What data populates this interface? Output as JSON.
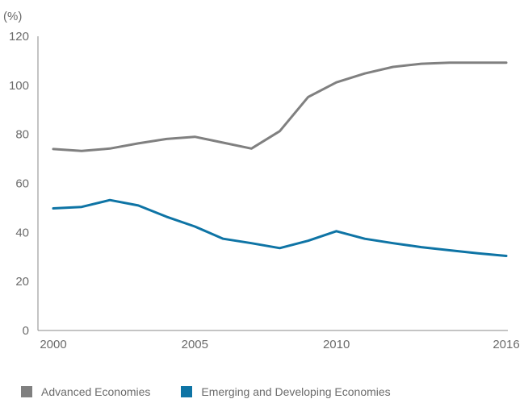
{
  "chart_data": {
    "type": "line",
    "unit_label": "(%)",
    "x": [
      2000,
      2001,
      2002,
      2003,
      2004,
      2005,
      2006,
      2007,
      2008,
      2009,
      2010,
      2011,
      2012,
      2013,
      2014,
      2015,
      2016
    ],
    "xticks": [
      "2000",
      "2005",
      "2010",
      "2016"
    ],
    "xlim": [
      2000,
      2016
    ],
    "ylim": [
      0,
      120
    ],
    "yticks": [
      0,
      20,
      40,
      60,
      80,
      100,
      120
    ],
    "grid": false,
    "legend_position": "bottom",
    "series": [
      {
        "name": "Advanced Economies",
        "color": "#808080",
        "values": [
          74,
          73.2,
          74.2,
          76.3,
          78.1,
          79,
          76.6,
          74.2,
          81.3,
          95.2,
          101.2,
          104.8,
          107.5,
          108.8,
          109.2,
          109.2,
          109.2
        ]
      },
      {
        "name": "Emerging and Developing Economies",
        "color": "#0e74a5",
        "values": [
          49.8,
          50.4,
          53.2,
          51,
          46.4,
          42.4,
          37.4,
          35.6,
          33.6,
          36.6,
          40.5,
          37.4,
          35.6,
          34,
          32.7,
          31.5,
          30.4
        ]
      }
    ]
  }
}
